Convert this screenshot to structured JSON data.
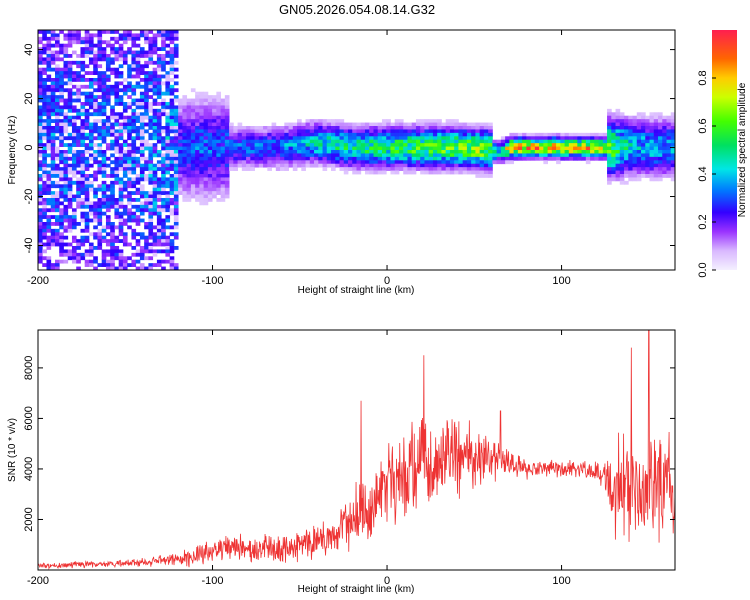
{
  "title": "GN05.2026.054.08.14.G32",
  "chart_data": [
    {
      "type": "heatmap",
      "xlabel": "Height of straight line (km)",
      "ylabel": "Frequency (Hz)",
      "xlim": [
        -200,
        165
      ],
      "ylim": [
        -50,
        48
      ],
      "xticks": [
        -200,
        -100,
        0,
        100
      ],
      "yticks": [
        -40,
        -20,
        0,
        20,
        40
      ],
      "colorbar": {
        "label": "Normalized spectral amplitude",
        "range": [
          0,
          1
        ],
        "ticks": [
          0.0,
          0.2,
          0.4,
          0.6,
          0.8
        ],
        "tick_labels": [
          "0.0",
          "0.2",
          "0.4",
          "0.6",
          "0.8"
        ]
      },
      "grid": false,
      "description_points": {
        "x": [
          -200,
          -150,
          -120,
          -100,
          -60,
          -40,
          -20,
          0,
          20,
          40,
          60,
          65,
          70,
          100,
          120,
          140,
          160,
          165
        ],
        "center_freq": [
          0,
          0,
          0,
          0,
          0,
          2,
          0,
          0,
          0,
          0,
          -1,
          -2,
          0,
          0,
          0,
          0,
          0,
          0
        ],
        "peak_amplitude": [
          0.25,
          0.25,
          0.3,
          0.35,
          0.4,
          0.55,
          0.6,
          0.65,
          0.7,
          0.75,
          0.8,
          0.5,
          1.0,
          1.0,
          0.95,
          0.5,
          0.45,
          0.45
        ]
      }
    },
    {
      "type": "line",
      "xlabel": "Height of straight line (km)",
      "ylabel": "SNR (10 * v/v)",
      "xlim": [
        -200,
        165
      ],
      "ylim": [
        0,
        9500
      ],
      "xticks": [
        -200,
        -100,
        0,
        100
      ],
      "yticks": [
        2000,
        4000,
        6000,
        8000
      ],
      "color": "#ee3333",
      "grid": false,
      "series": [
        {
          "x": [
            -200,
            -180,
            -160,
            -140,
            -120,
            -110,
            -100,
            -90,
            -80,
            -70,
            -60,
            -50,
            -40,
            -30,
            -20,
            -15,
            -10,
            -5,
            0,
            10,
            20,
            30,
            40,
            50,
            60,
            70,
            80,
            90,
            100,
            110,
            120,
            125,
            130,
            140,
            150,
            160,
            165
          ],
          "mean": [
            150,
            200,
            250,
            300,
            400,
            600,
            800,
            900,
            850,
            900,
            800,
            1000,
            1200,
            1400,
            2000,
            2200,
            2500,
            3000,
            3500,
            3800,
            4200,
            4300,
            4500,
            4500,
            4400,
            4200,
            4000,
            4000,
            4000,
            4000,
            3900,
            3700,
            3200,
            3300,
            3000,
            3300,
            3300
          ],
          "spread": [
            100,
            150,
            150,
            200,
            300,
            500,
            600,
            700,
            600,
            600,
            600,
            700,
            800,
            900,
            1400,
            1600,
            1500,
            1700,
            1800,
            2000,
            2300,
            2000,
            1800,
            1500,
            1200,
            600,
            500,
            400,
            400,
            400,
            400,
            600,
            2200,
            2600,
            2600,
            2600,
            2600
          ],
          "spikes": [
            {
              "x": -15,
              "y": 6700
            },
            {
              "x": 21,
              "y": 8500
            },
            {
              "x": 65,
              "y": 6300
            },
            {
              "x": 150,
              "y": 9500
            },
            {
              "x": 140,
              "y": 8800
            }
          ]
        }
      ]
    }
  ]
}
